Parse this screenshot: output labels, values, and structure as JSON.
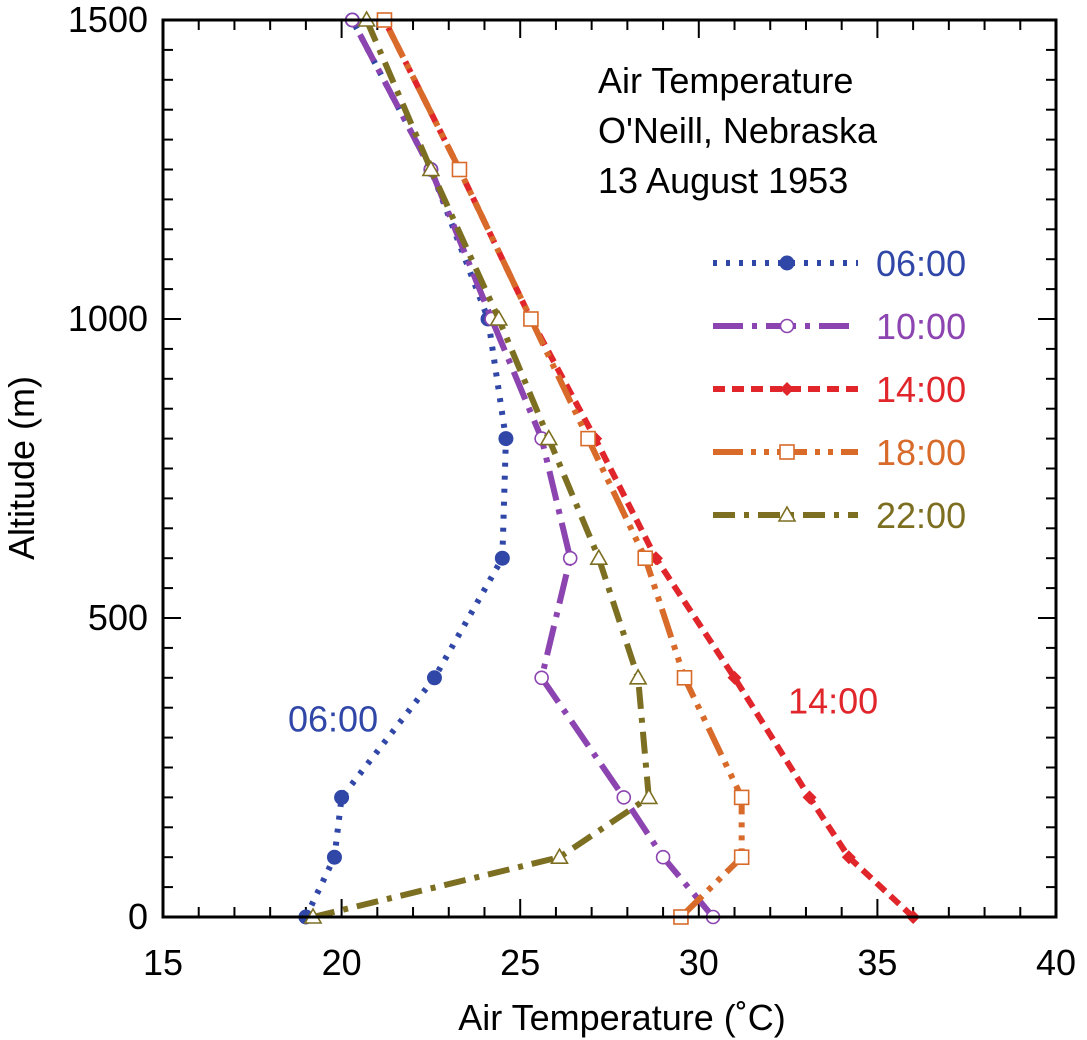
{
  "chart_data": {
    "type": "line",
    "title_lines": [
      "Air Temperature",
      "O'Neill, Nebraska",
      "13 August 1953"
    ],
    "xlabel": "Air Temperature (˚C)",
    "ylabel": "Altitude (m)",
    "xlim": [
      15,
      40
    ],
    "ylim": [
      0,
      1500
    ],
    "xticks": [
      15,
      20,
      25,
      30,
      35,
      40
    ],
    "yticks": [
      0,
      500,
      1000,
      1500
    ],
    "legend_position": "right",
    "series": [
      {
        "name": "06:00",
        "color": "#3047a8",
        "marker": "filled-circle",
        "line_style": "dotted",
        "points": [
          [
            19.0,
            0
          ],
          [
            19.8,
            100
          ],
          [
            20.0,
            200
          ],
          [
            22.6,
            400
          ],
          [
            24.5,
            600
          ],
          [
            24.6,
            800
          ],
          [
            24.1,
            1000
          ],
          [
            22.5,
            1250
          ],
          [
            20.3,
            1500
          ]
        ]
      },
      {
        "name": "10:00",
        "color": "#8c44b0",
        "marker": "open-circle",
        "line_style": "long-dash-dot",
        "points": [
          [
            30.4,
            0
          ],
          [
            29.0,
            100
          ],
          [
            27.9,
            200
          ],
          [
            25.6,
            400
          ],
          [
            26.4,
            600
          ],
          [
            25.6,
            800
          ],
          [
            24.2,
            1000
          ],
          [
            22.5,
            1250
          ],
          [
            20.3,
            1500
          ]
        ]
      },
      {
        "name": "14:00",
        "color": "#e0252b",
        "marker": "filled-diamond",
        "line_style": "dashed",
        "points": [
          [
            36.0,
            0
          ],
          [
            34.2,
            100
          ],
          [
            33.1,
            200
          ],
          [
            31.0,
            400
          ],
          [
            28.8,
            600
          ],
          [
            27.1,
            800
          ],
          [
            25.3,
            1000
          ],
          [
            23.3,
            1250
          ],
          [
            21.2,
            1500
          ]
        ]
      },
      {
        "name": "18:00",
        "color": "#d86a2a",
        "marker": "open-square",
        "line_style": "long-dash-dot-dot",
        "points": [
          [
            29.5,
            0
          ],
          [
            31.2,
            100
          ],
          [
            31.2,
            200
          ],
          [
            29.6,
            400
          ],
          [
            28.5,
            600
          ],
          [
            26.9,
            800
          ],
          [
            25.3,
            1000
          ],
          [
            23.3,
            1250
          ],
          [
            21.2,
            1500
          ]
        ]
      },
      {
        "name": "22:00",
        "color": "#7d6f22",
        "marker": "open-triangle",
        "line_style": "dash-dot",
        "points": [
          [
            19.2,
            0
          ],
          [
            26.1,
            100
          ],
          [
            28.6,
            200
          ],
          [
            28.3,
            400
          ],
          [
            27.2,
            600
          ],
          [
            25.8,
            800
          ],
          [
            24.4,
            1000
          ],
          [
            22.5,
            1250
          ],
          [
            20.7,
            1500
          ]
        ]
      }
    ],
    "annotations": [
      {
        "text": "06:00",
        "color": "#3047a8",
        "at": [
          18.5,
          330
        ]
      },
      {
        "text": "14:00",
        "color": "#e0252b",
        "at": [
          32.5,
          360
        ]
      }
    ]
  }
}
